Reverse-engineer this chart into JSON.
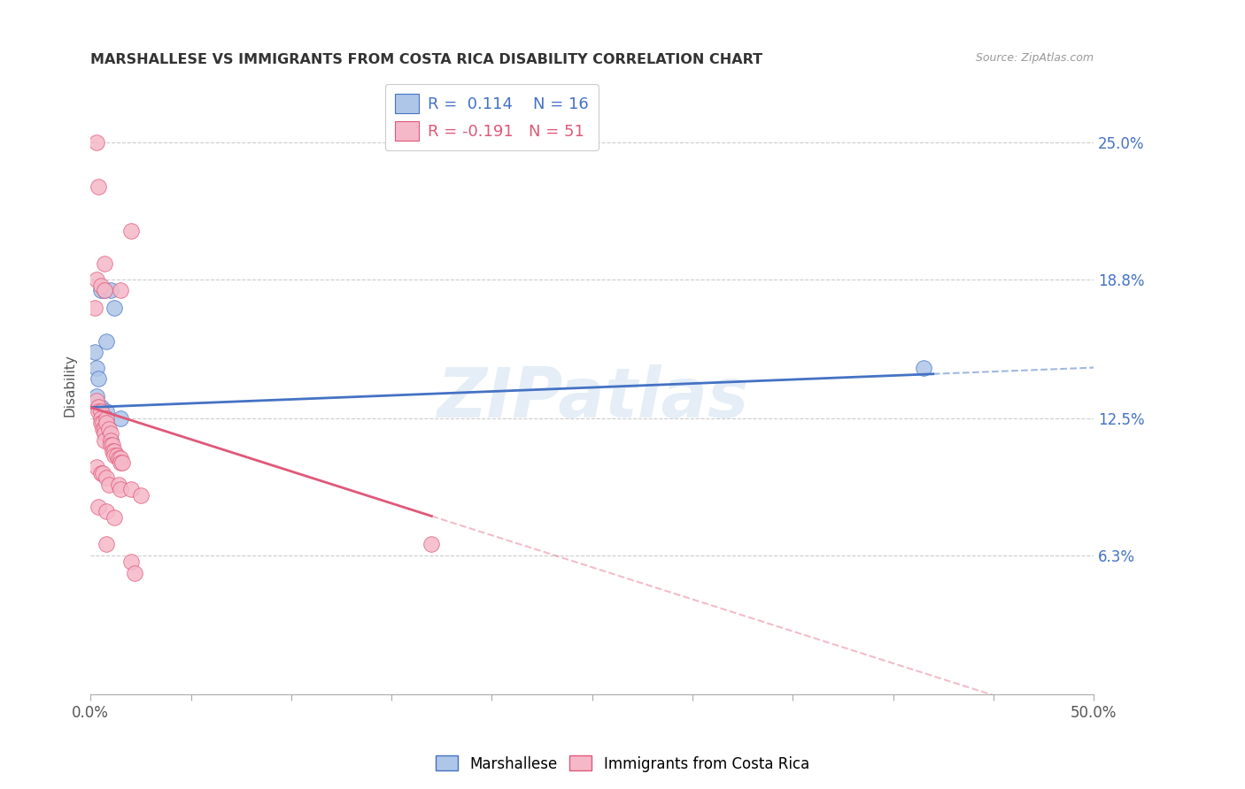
{
  "title": "MARSHALLESE VS IMMIGRANTS FROM COSTA RICA DISABILITY CORRELATION CHART",
  "source": "Source: ZipAtlas.com",
  "ylabel": "Disability",
  "xlim": [
    0.0,
    0.5
  ],
  "ylim": [
    0.0,
    0.28
  ],
  "yticks": [
    0.063,
    0.125,
    0.188,
    0.25
  ],
  "ytick_labels": [
    "6.3%",
    "12.5%",
    "18.8%",
    "25.0%"
  ],
  "xticks": [
    0.0,
    0.05,
    0.1,
    0.15,
    0.2,
    0.25,
    0.3,
    0.35,
    0.4,
    0.45,
    0.5
  ],
  "blue_R": 0.114,
  "blue_N": 16,
  "pink_R": -0.191,
  "pink_N": 51,
  "blue_color": "#aec6e8",
  "pink_color": "#f5b8c8",
  "blue_line_color": "#4472c4",
  "pink_line_color": "#e05878",
  "watermark": "ZIPatlas",
  "legend_label_blue": "Marshallese",
  "legend_label_pink": "Immigrants from Costa Rica",
  "blue_points": [
    [
      0.002,
      0.155
    ],
    [
      0.005,
      0.183
    ],
    [
      0.007,
      0.183
    ],
    [
      0.01,
      0.183
    ],
    [
      0.012,
      0.175
    ],
    [
      0.008,
      0.16
    ],
    [
      0.003,
      0.148
    ],
    [
      0.004,
      0.143
    ],
    [
      0.003,
      0.135
    ],
    [
      0.004,
      0.13
    ],
    [
      0.005,
      0.13
    ],
    [
      0.008,
      0.128
    ],
    [
      0.008,
      0.125
    ],
    [
      0.015,
      0.125
    ],
    [
      0.01,
      0.115
    ],
    [
      0.415,
      0.148
    ]
  ],
  "pink_points": [
    [
      0.003,
      0.25
    ],
    [
      0.004,
      0.23
    ],
    [
      0.02,
      0.21
    ],
    [
      0.007,
      0.195
    ],
    [
      0.003,
      0.188
    ],
    [
      0.005,
      0.185
    ],
    [
      0.007,
      0.183
    ],
    [
      0.015,
      0.183
    ],
    [
      0.002,
      0.175
    ],
    [
      0.003,
      0.133
    ],
    [
      0.004,
      0.13
    ],
    [
      0.004,
      0.128
    ],
    [
      0.005,
      0.128
    ],
    [
      0.005,
      0.125
    ],
    [
      0.005,
      0.123
    ],
    [
      0.006,
      0.123
    ],
    [
      0.006,
      0.12
    ],
    [
      0.007,
      0.12
    ],
    [
      0.007,
      0.118
    ],
    [
      0.007,
      0.115
    ],
    [
      0.008,
      0.125
    ],
    [
      0.008,
      0.123
    ],
    [
      0.009,
      0.12
    ],
    [
      0.01,
      0.118
    ],
    [
      0.01,
      0.115
    ],
    [
      0.01,
      0.113
    ],
    [
      0.011,
      0.113
    ],
    [
      0.011,
      0.11
    ],
    [
      0.012,
      0.11
    ],
    [
      0.012,
      0.108
    ],
    [
      0.013,
      0.108
    ],
    [
      0.014,
      0.107
    ],
    [
      0.015,
      0.107
    ],
    [
      0.015,
      0.105
    ],
    [
      0.016,
      0.105
    ],
    [
      0.003,
      0.103
    ],
    [
      0.005,
      0.1
    ],
    [
      0.006,
      0.1
    ],
    [
      0.008,
      0.098
    ],
    [
      0.009,
      0.095
    ],
    [
      0.014,
      0.095
    ],
    [
      0.015,
      0.093
    ],
    [
      0.02,
      0.093
    ],
    [
      0.025,
      0.09
    ],
    [
      0.004,
      0.085
    ],
    [
      0.008,
      0.083
    ],
    [
      0.012,
      0.08
    ],
    [
      0.17,
      0.068
    ],
    [
      0.008,
      0.068
    ],
    [
      0.02,
      0.06
    ],
    [
      0.022,
      0.055
    ]
  ]
}
